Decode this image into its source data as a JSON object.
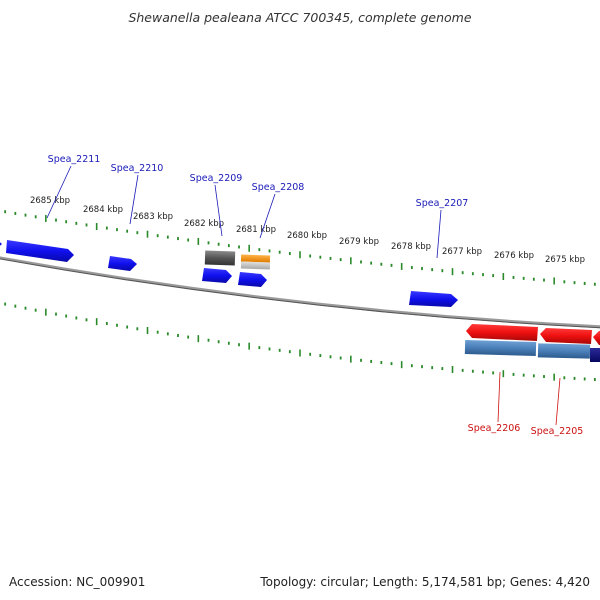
{
  "title": "Shewanella pealeana ATCC 700345, complete genome",
  "footer": {
    "accession": "Accession: NC_009901",
    "summary": "Topology: circular; Length: 5,174,581 bp; Genes: 4,420"
  },
  "colors": {
    "tick": "#2a8a2a",
    "forward_label": "#1a1ab8",
    "reverse_label": "#cc1111",
    "backbone": "#8a8a8a"
  },
  "ticks": [
    {
      "label": "2685 kbp"
    },
    {
      "label": "2684 kbp"
    },
    {
      "label": "2683 kbp"
    },
    {
      "label": "2682 kbp"
    },
    {
      "label": "2681 kbp"
    },
    {
      "label": "2680 kbp"
    },
    {
      "label": "2679 kbp"
    },
    {
      "label": "2678 kbp"
    },
    {
      "label": "2677 kbp"
    },
    {
      "label": "2676 kbp"
    },
    {
      "label": "2675 kbp"
    }
  ],
  "gene_labels": [
    {
      "name": "Spea_2211",
      "strand": "forward"
    },
    {
      "name": "Spea_2210",
      "strand": "forward"
    },
    {
      "name": "Spea_2209",
      "strand": "forward"
    },
    {
      "name": "Spea_2208",
      "strand": "forward"
    },
    {
      "name": "Spea_2207",
      "strand": "forward"
    },
    {
      "name": "Spea_2206",
      "strand": "reverse"
    },
    {
      "name": "Spea_2205",
      "strand": "reverse"
    }
  ]
}
